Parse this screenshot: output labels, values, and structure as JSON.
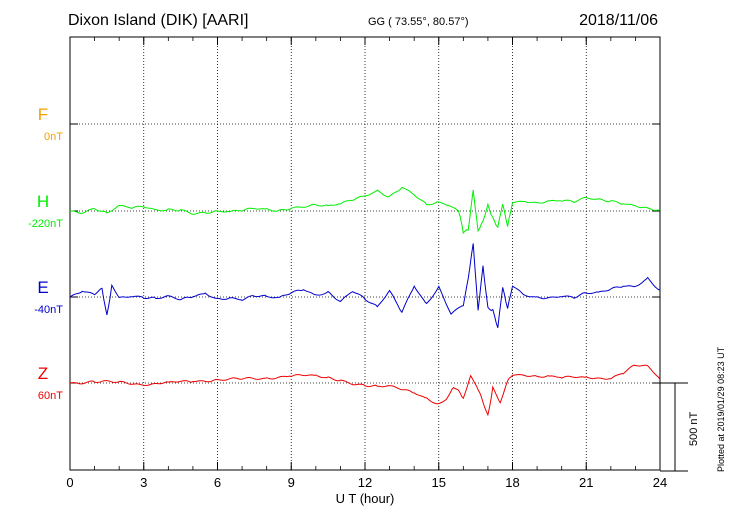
{
  "header": {
    "station": "Dixon Island (DIK)  [AARI]",
    "coords": "GG ( 73.55°,  80.57°)",
    "date": "2018/11/06"
  },
  "plotted_note": "Plotted at 2019/01/29 08:23 UT",
  "scale_bar_label": "500 nT",
  "colors": {
    "F": "#f5a000",
    "H": "#00ee00",
    "E": "#0000cc",
    "Z": "#ee0000"
  },
  "chart_data": {
    "type": "line",
    "title": "",
    "xlabel": "U T (hour)",
    "ylabel": "",
    "x_range": [
      0,
      24
    ],
    "x_ticks": [
      0,
      3,
      6,
      9,
      12,
      15,
      18,
      21,
      24
    ],
    "x_tick_labels": [
      "0",
      "3",
      "6",
      "9",
      "12",
      "15",
      "18",
      "21",
      "24"
    ],
    "grid": true,
    "scale_bar_nT": 500,
    "components": [
      {
        "name": "F",
        "baseline": "0nT"
      },
      {
        "name": "H",
        "baseline": "-220nT"
      },
      {
        "name": "E",
        "baseline": "-40nT"
      },
      {
        "name": "Z",
        "baseline": "60nT"
      }
    ],
    "series": [
      {
        "name": "H",
        "x": [
          0,
          0.5,
          1,
          1.5,
          2,
          2.5,
          3,
          3.5,
          4,
          4.5,
          5,
          5.5,
          6,
          6.5,
          7,
          7.5,
          8,
          8.5,
          9,
          9.5,
          10,
          10.5,
          11,
          11.5,
          12,
          12.5,
          13,
          13.5,
          14,
          14.5,
          15,
          15.5,
          15.8,
          16,
          16.2,
          16.4,
          16.6,
          16.8,
          17,
          17.2,
          17.4,
          17.6,
          17.8,
          18,
          18.5,
          19,
          19.5,
          20,
          20.5,
          21,
          21.5,
          22,
          22.5,
          23,
          23.5,
          24
        ],
        "values": [
          0,
          -5,
          20,
          -10,
          30,
          15,
          20,
          0,
          5,
          10,
          -10,
          -5,
          0,
          -5,
          0,
          10,
          5,
          0,
          20,
          30,
          40,
          30,
          40,
          60,
          80,
          110,
          80,
          140,
          100,
          40,
          50,
          25,
          0,
          -120,
          -100,
          120,
          -120,
          -60,
          40,
          -40,
          -100,
          40,
          -80,
          50,
          60,
          50,
          60,
          60,
          50,
          70,
          60,
          55,
          45,
          35,
          20,
          5
        ]
      },
      {
        "name": "E",
        "x": [
          0,
          0.5,
          1,
          1.3,
          1.5,
          1.7,
          2,
          2.5,
          3,
          3.5,
          4,
          4.5,
          5,
          5.5,
          6,
          6.5,
          7,
          7.5,
          8,
          8.5,
          9,
          9.5,
          10,
          10.5,
          11,
          11.5,
          12,
          12.5,
          13,
          13.5,
          14,
          14.5,
          15,
          15.5,
          16,
          16.2,
          16.4,
          16.6,
          16.8,
          17,
          17.2,
          17.4,
          17.6,
          17.8,
          18,
          18.5,
          19,
          19.5,
          20,
          20.5,
          21,
          21.5,
          22,
          22.5,
          23,
          23.5,
          24
        ],
        "values": [
          0,
          40,
          20,
          50,
          -100,
          60,
          0,
          10,
          0,
          -10,
          0,
          -20,
          0,
          20,
          -10,
          0,
          -10,
          10,
          0,
          -10,
          20,
          40,
          10,
          30,
          -20,
          40,
          -10,
          -60,
          30,
          -90,
          60,
          -40,
          60,
          -90,
          -40,
          110,
          300,
          -80,
          180,
          -60,
          -80,
          -180,
          60,
          -60,
          60,
          10,
          0,
          0,
          10,
          0,
          20,
          20,
          40,
          60,
          60,
          110,
          40
        ]
      },
      {
        "name": "Z",
        "x": [
          0,
          1,
          2,
          3,
          4,
          5,
          6,
          7,
          8,
          9,
          10,
          10.5,
          11,
          11.5,
          12,
          12.5,
          13,
          13.5,
          14,
          14.5,
          15,
          15.3,
          15.6,
          16,
          16.3,
          16.6,
          17,
          17.2,
          17.5,
          17.8,
          18,
          18.5,
          19,
          19.5,
          20,
          21,
          22,
          22.5,
          23,
          23.5,
          24
        ],
        "values": [
          0,
          10,
          0,
          -5,
          0,
          10,
          20,
          20,
          30,
          40,
          40,
          30,
          20,
          0,
          -10,
          -20,
          -20,
          -40,
          -60,
          -90,
          -120,
          -90,
          -20,
          -80,
          50,
          -40,
          -180,
          -30,
          -110,
          20,
          50,
          50,
          40,
          40,
          30,
          30,
          30,
          60,
          100,
          90,
          20
        ]
      }
    ]
  }
}
